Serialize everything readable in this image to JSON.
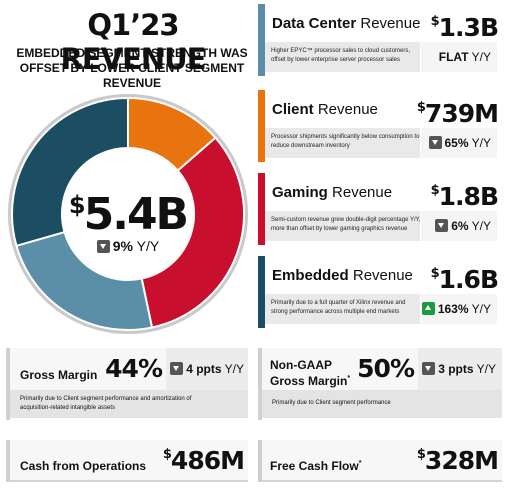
{
  "header": {
    "title": "Q1’23 REVENUE",
    "subtitle": "EMBEDDED SEGMENT STRENGTH WAS OFFSET BY LOWER CLIENT SEGMENT REVENUE"
  },
  "total": {
    "currency": "$",
    "value": "5.4B",
    "change": "9%",
    "change_unit": "Y/Y",
    "direction": "down"
  },
  "segments": [
    {
      "name_bold": "Data Center",
      "name_rest": "Revenue",
      "currency": "$",
      "value": "1.3B",
      "desc": "Higher EPYC™ processor sales to cloud customers, offset by lower enterprise server processor sales",
      "change": "FLAT",
      "change_unit": "Y/Y",
      "direction": "flat",
      "color": "#5b8fa8"
    },
    {
      "name_bold": "Client",
      "name_rest": "Revenue",
      "currency": "$",
      "value": "739M",
      "desc": "Processor shipments significantly below consumption to reduce downstream inventory",
      "change": "65%",
      "change_unit": "Y/Y",
      "direction": "down",
      "color": "#e8730f"
    },
    {
      "name_bold": "Gaming",
      "name_rest": "Revenue",
      "currency": "$",
      "value": "1.8B",
      "desc": "Semi-custom revenue grew double-digit percentage Y/Y, more than offset by lower gaming graphics revenue",
      "change": "6%",
      "change_unit": "Y/Y",
      "direction": "down",
      "color": "#c8102e"
    },
    {
      "name_bold": "Embedded",
      "name_rest": "Revenue",
      "currency": "$",
      "value": "1.6B",
      "desc": "Primarily due to a full quarter of Xilinx revenue and strong performance across multiple end markets",
      "change": "163%",
      "change_unit": "Y/Y",
      "direction": "up",
      "color": "#1c4e63"
    }
  ],
  "metrics": {
    "gross_margin": {
      "label": "Gross Margin",
      "value": "44%",
      "change": "4 ppts",
      "change_unit": "Y/Y",
      "direction": "down",
      "desc": "Primarily due to Client segment performance and amortization of acquisition-related intangible assets"
    },
    "non_gaap_gross_margin": {
      "label_line1": "Non-GAAP",
      "label_line2": "Gross Margin",
      "footnote": "*",
      "value": "50%",
      "change": "3 ppts",
      "change_unit": "Y/Y",
      "direction": "down",
      "desc": "Primarily due to Client segment performance"
    },
    "cash_from_operations": {
      "label": "Cash from Operations",
      "currency": "$",
      "value": "486M"
    },
    "free_cash_flow": {
      "label": "Free Cash Flow",
      "footnote": "*",
      "currency": "$",
      "value": "328M"
    }
  },
  "chart_data": {
    "type": "pie",
    "style": "donut",
    "title": "Q1’23 REVENUE",
    "unit": "$B",
    "total": 5.4,
    "center_label": "$5.4B",
    "slices": [
      {
        "name": "Client",
        "value": 0.739,
        "color": "#e8730f"
      },
      {
        "name": "Gaming",
        "value": 1.8,
        "color": "#c8102e"
      },
      {
        "name": "Data Center",
        "value": 1.3,
        "color": "#5b8fa8"
      },
      {
        "name": "Embedded",
        "value": 1.6,
        "color": "#1c4e63"
      }
    ]
  }
}
